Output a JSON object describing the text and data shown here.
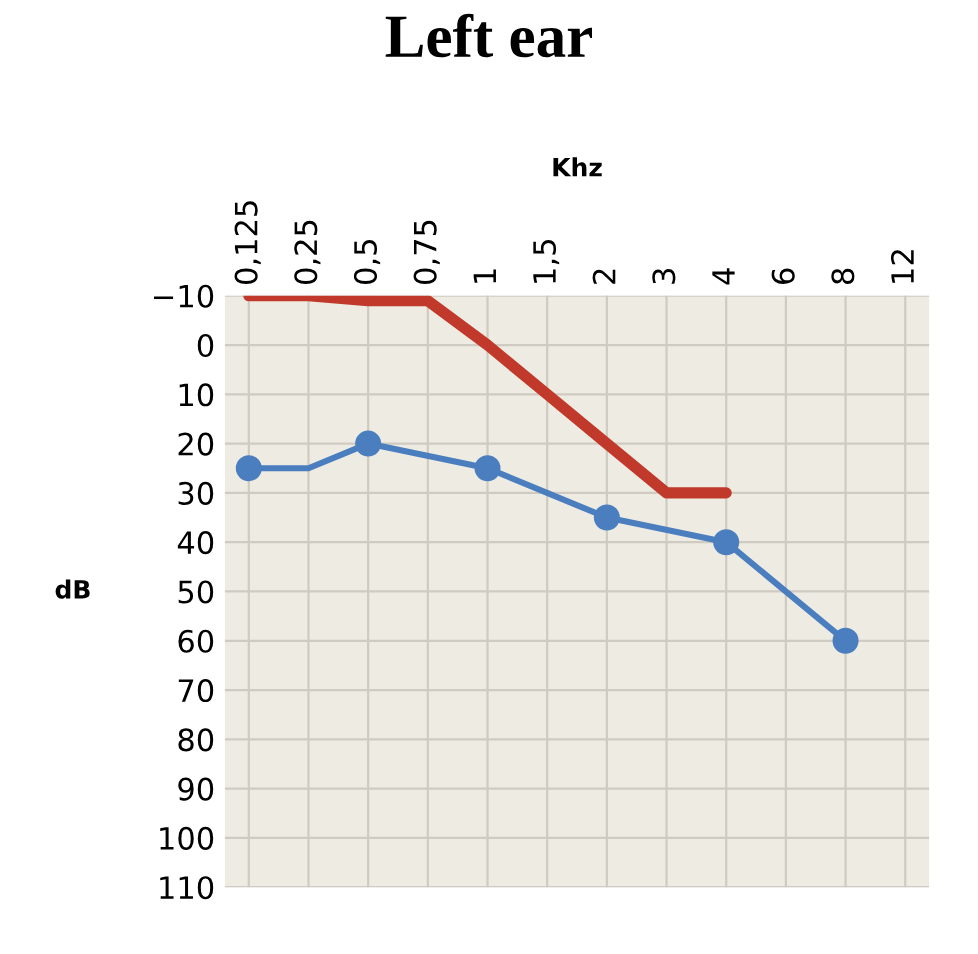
{
  "chart_data": {
    "type": "line",
    "title": "Left ear",
    "xlabel": "Khz",
    "ylabel": "dB",
    "categories": [
      "0,125",
      "0,25",
      "0,5",
      "0,75",
      "1",
      "1,5",
      "2",
      "3",
      "4",
      "6",
      "8",
      "12"
    ],
    "series": [
      {
        "color": "#c0392b",
        "values": [
          -10,
          -10,
          -9,
          -9,
          0,
          10,
          20,
          30,
          30,
          null,
          null,
          null
        ],
        "marker": "none"
      },
      {
        "color": "#4a7ebf",
        "values": [
          25,
          25,
          20,
          null,
          25,
          null,
          35,
          null,
          40,
          null,
          60,
          null
        ],
        "marker": "none"
      },
      {
        "type": "scatter",
        "color": "#4a7ebf",
        "x": [
          "0,125",
          "0,5",
          "1",
          "2",
          "4",
          "8"
        ],
        "values": [
          25,
          20,
          25,
          35,
          40,
          60
        ],
        "marker": "circle"
      }
    ],
    "ylim": [
      110,
      -10
    ],
    "yticks": [
      -10,
      0,
      10,
      20,
      30,
      40,
      50,
      60,
      70,
      80,
      90,
      100,
      110
    ],
    "grid": true
  }
}
